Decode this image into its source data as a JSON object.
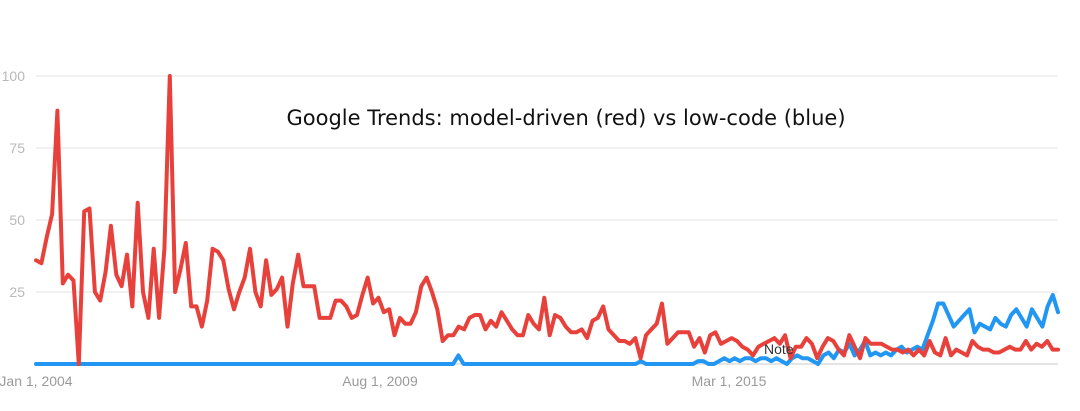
{
  "chart_data": {
    "type": "line",
    "title": "Google Trends: model-driven (red) vs low-code (blue)",
    "annotation": "Note",
    "ylim": [
      0,
      100
    ],
    "yticks": [
      "100",
      "75",
      "50",
      "25"
    ],
    "xtick_labels": [
      "Jan 1, 2004",
      "Aug 1, 2009",
      "Mar 1, 2015"
    ],
    "grid": true,
    "legend": "none",
    "colors": {
      "model_driven": "#e8403a",
      "low_code": "#2196f3"
    },
    "series": [
      {
        "key": "model_driven",
        "color": "#e8403a",
        "values": [
          36,
          35,
          44,
          52,
          88,
          28,
          31,
          29,
          0,
          53,
          54,
          25,
          22,
          32,
          48,
          31,
          27,
          38,
          20,
          56,
          25,
          16,
          40,
          16,
          40,
          100,
          25,
          33,
          42,
          20,
          20,
          13,
          22,
          40,
          39,
          36,
          26,
          19,
          25,
          30,
          40,
          25,
          20,
          36,
          24,
          26,
          30,
          13,
          28,
          38,
          27,
          27,
          27,
          16,
          16,
          16,
          22,
          22,
          20,
          16,
          17,
          24,
          30,
          21,
          23,
          18,
          19,
          10,
          16,
          14,
          14,
          18,
          27,
          30,
          25,
          19,
          8,
          10,
          10,
          13,
          12,
          16,
          17,
          17,
          12,
          15,
          13,
          18,
          15,
          12,
          10,
          10,
          17,
          14,
          12,
          23,
          10,
          17,
          16,
          13,
          11,
          11,
          12,
          9,
          15,
          16,
          20,
          12,
          10,
          8,
          8,
          7,
          9,
          2,
          10,
          12,
          14,
          21,
          7,
          9,
          11,
          11,
          11,
          6,
          9,
          4,
          10,
          11,
          7,
          8,
          9,
          8,
          6,
          5,
          3,
          6,
          7,
          8,
          9,
          7,
          10,
          2,
          6,
          6,
          9,
          7,
          2,
          6,
          9,
          8,
          5,
          3,
          10,
          6,
          2,
          9,
          7,
          7,
          7,
          6,
          5,
          5,
          4,
          5,
          3,
          5,
          3,
          8,
          4,
          3,
          9,
          3,
          5,
          4,
          3,
          8,
          6,
          5,
          5,
          4,
          4,
          5,
          6,
          5,
          5,
          8,
          5,
          7,
          6,
          8,
          5,
          5
        ]
      },
      {
        "key": "low_code",
        "color": "#2196f3",
        "values": [
          0,
          0,
          0,
          0,
          0,
          0,
          0,
          0,
          0,
          0,
          0,
          0,
          0,
          0,
          0,
          0,
          0,
          0,
          0,
          0,
          0,
          0,
          0,
          0,
          0,
          0,
          0,
          0,
          0,
          0,
          0,
          0,
          0,
          0,
          0,
          0,
          0,
          0,
          0,
          0,
          0,
          0,
          0,
          0,
          0,
          0,
          0,
          0,
          0,
          0,
          0,
          0,
          0,
          0,
          0,
          0,
          0,
          0,
          0,
          0,
          0,
          0,
          0,
          0,
          0,
          0,
          0,
          0,
          0,
          0,
          0,
          0,
          0,
          0,
          0,
          0,
          0,
          0,
          0,
          0,
          0,
          3,
          0,
          0,
          0,
          0,
          0,
          0,
          0,
          0,
          0,
          0,
          0,
          0,
          0,
          0,
          0,
          0,
          0,
          0,
          0,
          0,
          0,
          0,
          0,
          0,
          0,
          0,
          0,
          0,
          0,
          0,
          0,
          0,
          0,
          0,
          1,
          0,
          0,
          0,
          0,
          0,
          0,
          0,
          0,
          0,
          0,
          1,
          1,
          0,
          0,
          1,
          2,
          1,
          2,
          1,
          2,
          2,
          1,
          2,
          2,
          1,
          2,
          1,
          0,
          2,
          3,
          2,
          2,
          1,
          0,
          3,
          4,
          2,
          5,
          4,
          7,
          3,
          5,
          8,
          3,
          4,
          3,
          4,
          3,
          5,
          6,
          4,
          5,
          6,
          5,
          10,
          15,
          21,
          21,
          17,
          13,
          15,
          17,
          19,
          11,
          14,
          13,
          12,
          16,
          14,
          13,
          17,
          19,
          16,
          13,
          19,
          16,
          13,
          20,
          24,
          18
        ]
      }
    ]
  }
}
